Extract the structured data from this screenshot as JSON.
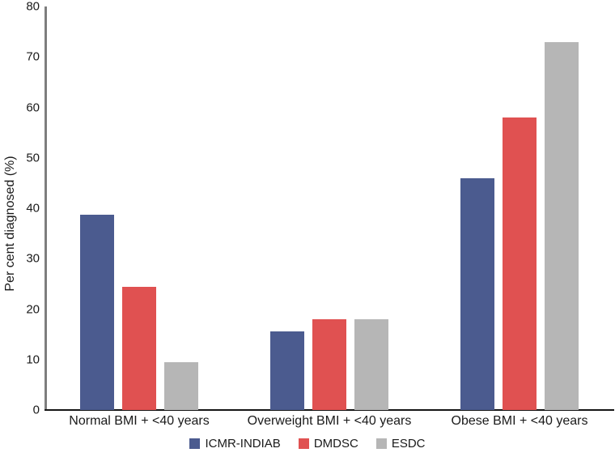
{
  "chart_data": {
    "type": "bar",
    "title": "",
    "xlabel": "",
    "ylabel": "Per cent diagnosed (%)",
    "ylim": [
      0,
      80
    ],
    "yticks": [
      0,
      10,
      20,
      30,
      40,
      50,
      60,
      70,
      80
    ],
    "grid": false,
    "legend_position": "bottom",
    "categories": [
      "Normal BMI + <40 years",
      "Overweight BMI + <40 years",
      "Obese BMI + <40 years"
    ],
    "series": [
      {
        "name": "ICMR-INDIAB",
        "color": "#4b5b8f",
        "values": [
          38.7,
          15.6,
          46
        ]
      },
      {
        "name": "DMDSC",
        "color": "#e05151",
        "values": [
          24.4,
          18,
          58
        ]
      },
      {
        "name": "ESDC",
        "color": "#b6b6b6",
        "values": [
          9.4,
          18,
          73
        ]
      }
    ],
    "axis_colors": {
      "y_axis": "#7e7e7e",
      "x_axis": "#151515"
    }
  }
}
